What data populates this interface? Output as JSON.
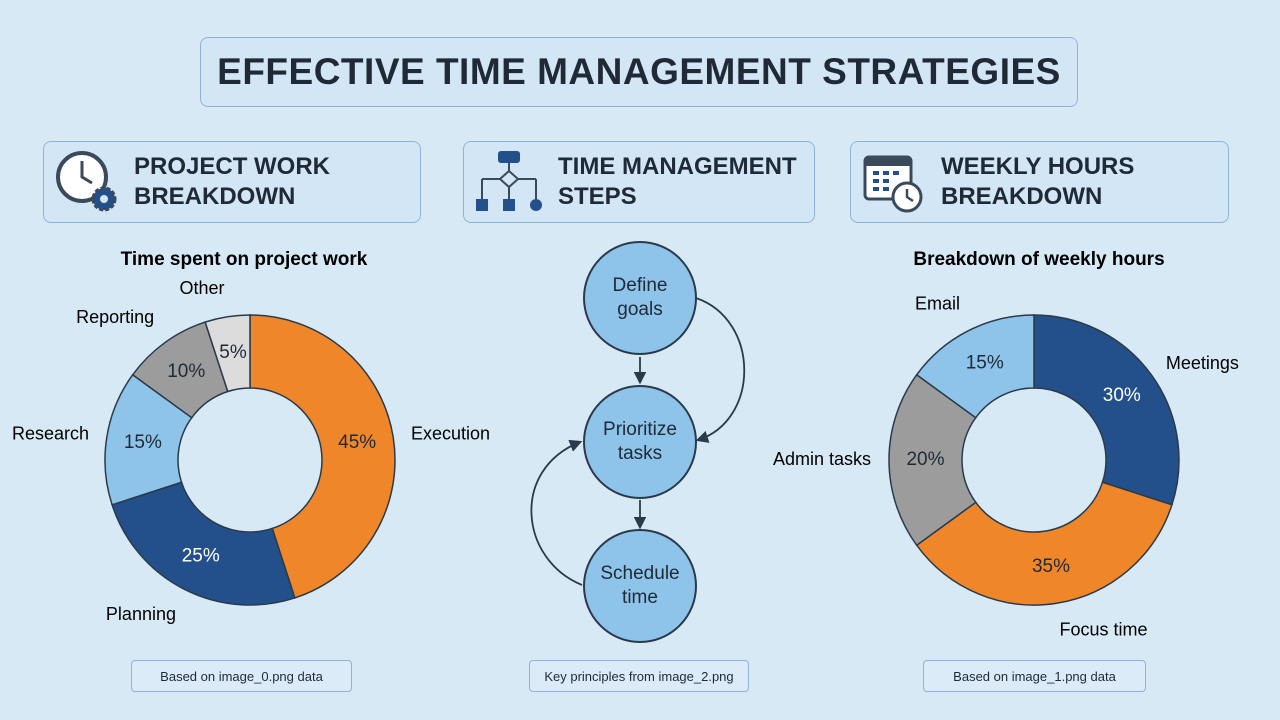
{
  "title": "EFFECTIVE TIME MANAGEMENT STRATEGIES",
  "panels": [
    {
      "heading": "PROJECT WORK BREAKDOWN",
      "footnote": "Based on image_0.png data"
    },
    {
      "heading": "TIME MANAGEMENT STEPS",
      "footnote": "Key principles from image_2.png"
    },
    {
      "heading": "WEEKLY HOURS BREAKDOWN",
      "footnote": "Based on image_1.png data"
    }
  ],
  "chart_data": [
    {
      "type": "donut",
      "title": "Time spent on project work",
      "categories": [
        "Execution",
        "Planning",
        "Research",
        "Reporting",
        "Other"
      ],
      "values": [
        45,
        25,
        15,
        10,
        5
      ],
      "value_labels": [
        "45%",
        "25%",
        "15%",
        "10%",
        "5%"
      ],
      "colors": [
        "#f0862a",
        "#23508a",
        "#8ec3ea",
        "#9c9c9c",
        "#dcdcdc"
      ]
    },
    {
      "type": "donut",
      "title": "Breakdown of weekly hours",
      "categories": [
        "Meetings",
        "Focus time",
        "Admin tasks",
        "Email"
      ],
      "values": [
        30,
        35,
        20,
        15
      ],
      "value_labels": [
        "30%",
        "35%",
        "20%",
        "15%"
      ],
      "colors": [
        "#23508a",
        "#f0862a",
        "#9c9c9c",
        "#8ec3ea"
      ]
    }
  ],
  "diagram": {
    "nodes": [
      {
        "label": "Define goals"
      },
      {
        "label": "Prioritize tasks"
      },
      {
        "label": "Schedule time"
      }
    ]
  }
}
